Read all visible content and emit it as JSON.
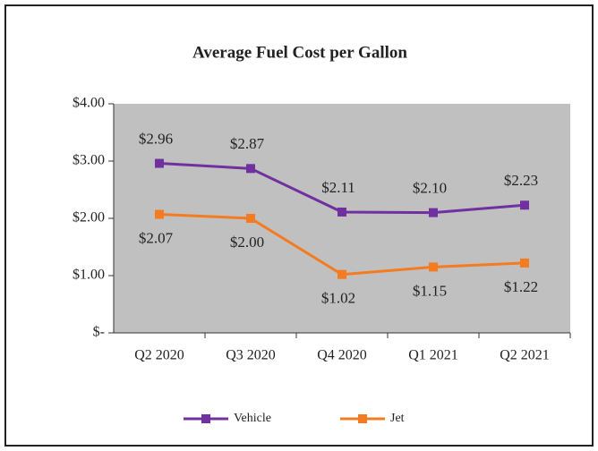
{
  "chart_data": {
    "type": "line",
    "title": "Average Fuel Cost per Gallon",
    "categories": [
      "Q2 2020",
      "Q3 2020",
      "Q4 2020",
      "Q1 2021",
      "Q2 2021"
    ],
    "series": [
      {
        "name": "Vehicle",
        "color": "#7030a0",
        "values": [
          2.96,
          2.87,
          2.11,
          2.1,
          2.23
        ],
        "value_labels": [
          "$2.96",
          "$2.87",
          "$2.11",
          "$2.10",
          "$2.23"
        ]
      },
      {
        "name": "Jet",
        "color": "#f47b20",
        "values": [
          2.07,
          2.0,
          1.02,
          1.15,
          1.22
        ],
        "value_labels": [
          "$2.07",
          "$2.00",
          "$1.02",
          "$1.15",
          "$1.22"
        ]
      }
    ],
    "ylim": [
      0,
      4
    ],
    "yticks": [
      {
        "value": 0,
        "label": "$-"
      },
      {
        "value": 1,
        "label": "$1.00"
      },
      {
        "value": 2,
        "label": "$2.00"
      },
      {
        "value": 3,
        "label": "$3.00"
      },
      {
        "value": 4,
        "label": "$4.00"
      }
    ],
    "grid": false,
    "legend": "bottom",
    "plot_background": "#c0c0c0"
  }
}
